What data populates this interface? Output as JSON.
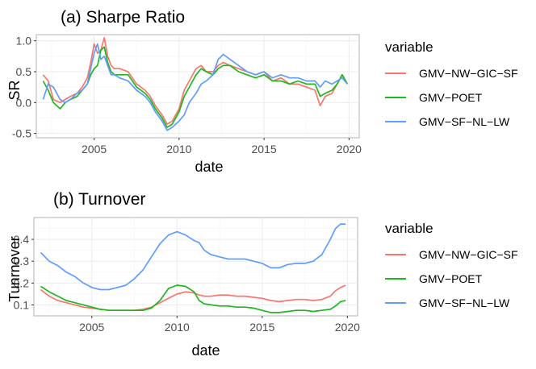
{
  "colors": {
    "GMV-NW-GIC-SF": "#F8766D",
    "GMV-POET": "#1DB81D",
    "GMV-SF-NL-LW": "#619CFF"
  },
  "chart_data": [
    {
      "type": "line",
      "title": "(a) Sharpe Ratio",
      "xlabel": "date",
      "ylabel": "SR",
      "xlim": [
        2001.6,
        2020.6
      ],
      "ylim": [
        -0.57,
        1.1
      ],
      "xticks": [
        2005,
        2010,
        2015,
        2020
      ],
      "xtick_labels": [
        "2005",
        "2010",
        "2015",
        "2020"
      ],
      "yticks": [
        -0.5,
        0.0,
        0.5,
        1.0
      ],
      "ytick_labels": [
        "-0.5",
        "0.0",
        "0.5",
        "1.0"
      ],
      "grid": true,
      "legend": {
        "title": "variable",
        "position": "right"
      },
      "series": [
        {
          "name": "GMV−NW−GIC−SF",
          "x": [
            2002.0,
            2002.3,
            2002.6,
            2003.0,
            2003.3,
            2003.6,
            2004.0,
            2004.3,
            2004.6,
            2004.8,
            2005.0,
            2005.2,
            2005.4,
            2005.6,
            2005.8,
            2006.0,
            2006.2,
            2006.5,
            2007.0,
            2007.5,
            2008.0,
            2008.3,
            2008.6,
            2009.0,
            2009.3,
            2009.6,
            2010.0,
            2010.3,
            2010.6,
            2011.0,
            2011.3,
            2011.6,
            2012.0,
            2012.3,
            2012.6,
            2013.0,
            2013.5,
            2014.0,
            2014.5,
            2015.0,
            2015.5,
            2016.0,
            2016.5,
            2017.0,
            2017.5,
            2018.0,
            2018.3,
            2018.6,
            2019.0,
            2019.3,
            2019.6,
            2019.9
          ],
          "values": [
            0.45,
            0.35,
            0.05,
            0.0,
            0.05,
            0.1,
            0.15,
            0.25,
            0.4,
            0.65,
            0.95,
            0.8,
            0.85,
            1.05,
            0.75,
            0.6,
            0.55,
            0.55,
            0.5,
            0.3,
            0.2,
            0.1,
            -0.05,
            -0.2,
            -0.35,
            -0.3,
            -0.1,
            0.2,
            0.35,
            0.55,
            0.6,
            0.5,
            0.5,
            0.6,
            0.65,
            0.6,
            0.55,
            0.5,
            0.45,
            0.5,
            0.35,
            0.4,
            0.3,
            0.3,
            0.25,
            0.2,
            -0.05,
            0.1,
            0.15,
            0.3,
            0.45,
            0.3
          ]
        },
        {
          "name": "GMV−POET",
          "x": [
            2002.0,
            2002.3,
            2002.6,
            2003.0,
            2003.3,
            2003.6,
            2004.0,
            2004.3,
            2004.6,
            2004.8,
            2005.0,
            2005.2,
            2005.4,
            2005.6,
            2005.8,
            2006.0,
            2006.2,
            2006.5,
            2007.0,
            2007.5,
            2008.0,
            2008.3,
            2008.6,
            2009.0,
            2009.3,
            2009.6,
            2010.0,
            2010.3,
            2010.6,
            2011.0,
            2011.3,
            2011.6,
            2012.0,
            2012.3,
            2012.6,
            2013.0,
            2013.5,
            2014.0,
            2014.5,
            2015.0,
            2015.5,
            2016.0,
            2016.5,
            2017.0,
            2017.5,
            2018.0,
            2018.3,
            2018.6,
            2019.0,
            2019.3,
            2019.6,
            2019.9
          ],
          "values": [
            0.35,
            0.2,
            0.0,
            -0.1,
            0.0,
            0.05,
            0.1,
            0.2,
            0.3,
            0.45,
            0.55,
            0.6,
            0.85,
            0.9,
            0.65,
            0.5,
            0.45,
            0.45,
            0.45,
            0.25,
            0.15,
            0.05,
            -0.1,
            -0.25,
            -0.4,
            -0.35,
            -0.15,
            0.1,
            0.25,
            0.45,
            0.55,
            0.5,
            0.45,
            0.55,
            0.6,
            0.6,
            0.5,
            0.45,
            0.4,
            0.45,
            0.35,
            0.35,
            0.3,
            0.35,
            0.3,
            0.3,
            0.1,
            0.15,
            0.2,
            0.3,
            0.45,
            0.3
          ]
        },
        {
          "name": "GMV−SF−NL−LW",
          "x": [
            2002.0,
            2002.3,
            2002.6,
            2003.0,
            2003.3,
            2003.6,
            2004.0,
            2004.3,
            2004.6,
            2004.8,
            2005.0,
            2005.2,
            2005.4,
            2005.6,
            2005.8,
            2006.0,
            2006.2,
            2006.5,
            2007.0,
            2007.5,
            2008.0,
            2008.3,
            2008.6,
            2009.0,
            2009.3,
            2009.6,
            2010.0,
            2010.3,
            2010.6,
            2011.0,
            2011.3,
            2011.6,
            2012.0,
            2012.3,
            2012.6,
            2013.0,
            2013.5,
            2014.0,
            2014.5,
            2015.0,
            2015.5,
            2016.0,
            2016.5,
            2017.0,
            2017.5,
            2018.0,
            2018.3,
            2018.6,
            2019.0,
            2019.3,
            2019.6,
            2019.9
          ],
          "values": [
            0.05,
            0.3,
            0.25,
            0.05,
            0.0,
            0.05,
            0.15,
            0.2,
            0.3,
            0.55,
            0.8,
            0.95,
            0.7,
            0.75,
            0.6,
            0.45,
            0.45,
            0.4,
            0.35,
            0.2,
            0.1,
            0.0,
            -0.15,
            -0.3,
            -0.45,
            -0.4,
            -0.3,
            -0.2,
            0.0,
            0.15,
            0.3,
            0.35,
            0.45,
            0.7,
            0.78,
            0.7,
            0.6,
            0.5,
            0.45,
            0.5,
            0.4,
            0.45,
            0.4,
            0.4,
            0.35,
            0.35,
            0.25,
            0.35,
            0.3,
            0.35,
            0.4,
            0.3
          ]
        }
      ]
    },
    {
      "type": "line",
      "title": "(b) Turnover",
      "xlabel": "date",
      "ylabel": "Tunrnover",
      "xlim": [
        2001.6,
        2020.6
      ],
      "ylim": [
        0.05,
        0.5
      ],
      "xticks": [
        2005,
        2010,
        2015,
        2020
      ],
      "xtick_labels": [
        "2005",
        "2010",
        "2015",
        "2020"
      ],
      "yticks": [
        0.1,
        0.2,
        0.3,
        0.4
      ],
      "ytick_labels": [
        "0.1",
        "0.2",
        "0.3",
        "0.4"
      ],
      "grid": true,
      "legend": {
        "title": "variable",
        "position": "right"
      },
      "series": [
        {
          "name": "GMV−NW−GIC−SF",
          "x": [
            2002.0,
            2002.5,
            2003.0,
            2003.5,
            2004.0,
            2004.5,
            2005.0,
            2005.5,
            2006.0,
            2006.5,
            2007.0,
            2007.5,
            2008.0,
            2008.5,
            2009.0,
            2009.5,
            2010.0,
            2010.5,
            2011.0,
            2011.3,
            2011.6,
            2012.0,
            2012.5,
            2013.0,
            2013.5,
            2014.0,
            2014.5,
            2015.0,
            2015.5,
            2016.0,
            2016.5,
            2017.0,
            2017.5,
            2018.0,
            2018.5,
            2019.0,
            2019.3,
            2019.6,
            2019.9
          ],
          "values": [
            0.17,
            0.14,
            0.12,
            0.11,
            0.1,
            0.09,
            0.085,
            0.08,
            0.075,
            0.075,
            0.075,
            0.075,
            0.08,
            0.09,
            0.11,
            0.13,
            0.15,
            0.16,
            0.155,
            0.145,
            0.14,
            0.14,
            0.145,
            0.145,
            0.14,
            0.14,
            0.135,
            0.13,
            0.12,
            0.115,
            0.12,
            0.125,
            0.125,
            0.12,
            0.125,
            0.14,
            0.165,
            0.18,
            0.19
          ]
        },
        {
          "name": "GMV−POET",
          "x": [
            2002.0,
            2002.5,
            2003.0,
            2003.5,
            2004.0,
            2004.5,
            2005.0,
            2005.5,
            2006.0,
            2006.5,
            2007.0,
            2007.5,
            2008.0,
            2008.5,
            2009.0,
            2009.5,
            2010.0,
            2010.5,
            2011.0,
            2011.3,
            2011.6,
            2012.0,
            2012.5,
            2013.0,
            2013.5,
            2014.0,
            2014.5,
            2015.0,
            2015.5,
            2016.0,
            2016.5,
            2017.0,
            2017.5,
            2018.0,
            2018.5,
            2019.0,
            2019.3,
            2019.6,
            2019.9
          ],
          "values": [
            0.185,
            0.16,
            0.14,
            0.12,
            0.11,
            0.1,
            0.09,
            0.08,
            0.075,
            0.075,
            0.075,
            0.075,
            0.075,
            0.085,
            0.12,
            0.175,
            0.19,
            0.185,
            0.16,
            0.12,
            0.105,
            0.1,
            0.095,
            0.095,
            0.09,
            0.09,
            0.085,
            0.075,
            0.065,
            0.065,
            0.07,
            0.075,
            0.075,
            0.07,
            0.075,
            0.08,
            0.095,
            0.115,
            0.12
          ]
        },
        {
          "name": "GMV−SF−NL−LW",
          "x": [
            2002.0,
            2002.5,
            2003.0,
            2003.5,
            2004.0,
            2004.5,
            2005.0,
            2005.5,
            2006.0,
            2006.5,
            2007.0,
            2007.5,
            2008.0,
            2008.5,
            2009.0,
            2009.5,
            2010.0,
            2010.5,
            2011.0,
            2011.3,
            2011.6,
            2012.0,
            2012.5,
            2013.0,
            2013.5,
            2014.0,
            2014.5,
            2015.0,
            2015.5,
            2016.0,
            2016.5,
            2017.0,
            2017.5,
            2018.0,
            2018.5,
            2019.0,
            2019.3,
            2019.6,
            2019.9
          ],
          "values": [
            0.34,
            0.3,
            0.28,
            0.25,
            0.23,
            0.2,
            0.18,
            0.17,
            0.17,
            0.18,
            0.19,
            0.22,
            0.26,
            0.32,
            0.38,
            0.42,
            0.435,
            0.42,
            0.395,
            0.385,
            0.35,
            0.33,
            0.32,
            0.31,
            0.31,
            0.31,
            0.3,
            0.29,
            0.27,
            0.27,
            0.285,
            0.29,
            0.29,
            0.3,
            0.33,
            0.4,
            0.45,
            0.47,
            0.47
          ]
        }
      ]
    }
  ]
}
